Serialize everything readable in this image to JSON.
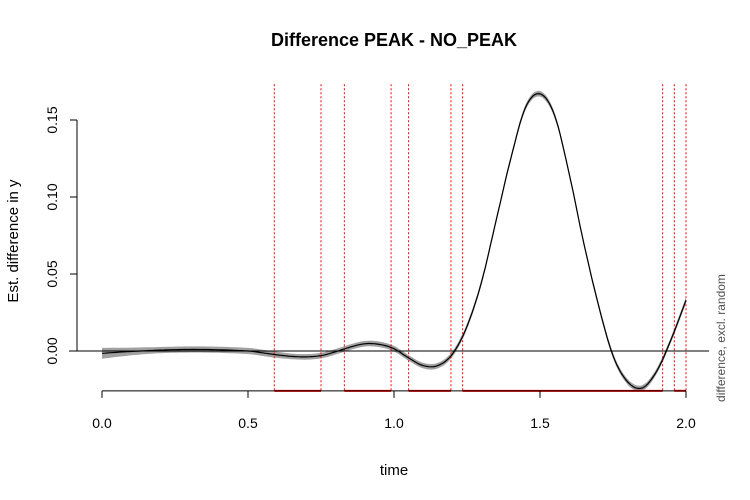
{
  "chart_data": {
    "type": "line",
    "title": "Difference PEAK - NO_PEAK",
    "xlabel": "time",
    "ylabel": "Est. difference in y",
    "side_label": "difference, excl. random",
    "xlim": [
      0,
      2
    ],
    "ylim": [
      -0.033,
      0.17
    ],
    "x_ticks": [
      {
        "value": 0,
        "label": "0.0"
      },
      {
        "value": 0.5,
        "label": "0.5"
      },
      {
        "value": 1.0,
        "label": "1.0"
      },
      {
        "value": 1.5,
        "label": "1.5"
      },
      {
        "value": 2.0,
        "label": "2.0"
      }
    ],
    "y_ticks": [
      {
        "value": 0,
        "label": "0.00"
      },
      {
        "value": 0.05,
        "label": "0.05"
      },
      {
        "value": 0.1,
        "label": "0.10"
      },
      {
        "value": 0.15,
        "label": "0.15"
      }
    ],
    "reference_line_y": 0,
    "series": [
      {
        "x": [
          0,
          0.1,
          0.2,
          0.3,
          0.4,
          0.5,
          0.55,
          0.6,
          0.65,
          0.7,
          0.75,
          0.8,
          0.85,
          0.9,
          0.95,
          1.0,
          1.05,
          1.1,
          1.15,
          1.2,
          1.25,
          1.3,
          1.35,
          1.4,
          1.45,
          1.5,
          1.55,
          1.6,
          1.65,
          1.7,
          1.75,
          1.8,
          1.85,
          1.9,
          1.95,
          2.0
        ],
        "y": [
          -0.0015,
          -0.0003,
          0.0006,
          0.001,
          0.0008,
          0.0,
          -0.0012,
          -0.0025,
          -0.0035,
          -0.0038,
          -0.003,
          -0.0005,
          0.0025,
          0.0047,
          0.0043,
          0.0015,
          -0.0045,
          -0.0095,
          -0.0095,
          -0.002,
          0.016,
          0.045,
          0.085,
          0.125,
          0.158,
          0.167,
          0.153,
          0.115,
          0.07,
          0.03,
          -0.003,
          -0.02,
          -0.024,
          -0.013,
          0.008,
          0.033
        ],
        "ci_halfwidth": [
          0.0035,
          0.0025,
          0.002,
          0.002,
          0.002,
          0.002,
          0.002,
          0.002,
          0.0018,
          0.0018,
          0.0018,
          0.0018,
          0.0018,
          0.0018,
          0.0018,
          0.0018,
          0.0018,
          0.0018,
          0.0018,
          0.0018,
          0.0018,
          0.0018,
          0.0018,
          0.0018,
          0.0018,
          0.0018,
          0.0018,
          0.0018,
          0.0018,
          0.0018,
          0.0018,
          0.0018,
          0.0018,
          0.0018,
          0.0018,
          0.002
        ]
      }
    ],
    "significance_boundaries_x": [
      0.59,
      0.75,
      0.83,
      0.99,
      1.05,
      1.195,
      1.235,
      1.92,
      1.96,
      2.0
    ],
    "significant_intervals": [
      [
        0.59,
        0.75
      ],
      [
        0.83,
        0.99
      ],
      [
        1.05,
        1.195
      ],
      [
        1.235,
        1.92
      ],
      [
        1.96,
        2.0
      ]
    ],
    "colors": {
      "line": "#000000",
      "band": "#a0a0a0",
      "significance": "#ff0000",
      "side_label": "#505050"
    },
    "grid": false,
    "legend": "none"
  }
}
